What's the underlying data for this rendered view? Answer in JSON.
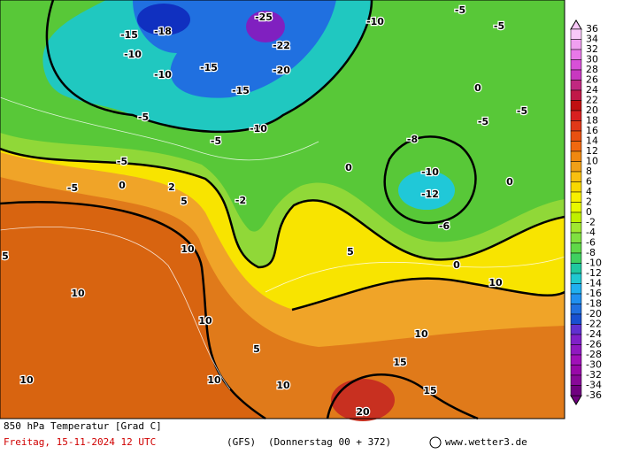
{
  "map": {
    "title": "850 hPa Temperatur [Grad C]",
    "date": "Freitag, 15-11-2024  12 UTC",
    "model": "(GFS)",
    "run": "(Donnerstag 00 + 372)",
    "credit": "www.wetter3.de",
    "scale": [
      36,
      34,
      32,
      30,
      28,
      26,
      24,
      22,
      20,
      18,
      16,
      14,
      12,
      10,
      8,
      6,
      4,
      2,
      0,
      -2,
      -4,
      -6,
      -8,
      -10,
      -12,
      -14,
      -16,
      -18,
      -20,
      -22,
      -24,
      -26,
      -28,
      -30,
      -32,
      -34,
      -36
    ],
    "labels": [
      "-15",
      "-18",
      "-25",
      "-22",
      "-20",
      "-15",
      "-10",
      "-10",
      "-15",
      "-10",
      "-5",
      "-5",
      "-5",
      "0",
      "-5",
      "5",
      "10",
      "5",
      "10",
      "10",
      "5",
      "10",
      "10",
      "10",
      "10",
      "15",
      "15",
      "20",
      "-10",
      "-12",
      "-10",
      "-5",
      "-5",
      "0",
      "-5",
      "-5",
      "-2",
      "0",
      "0",
      "5",
      "0",
      "10",
      "-6",
      "-8",
      "2"
    ]
  }
}
